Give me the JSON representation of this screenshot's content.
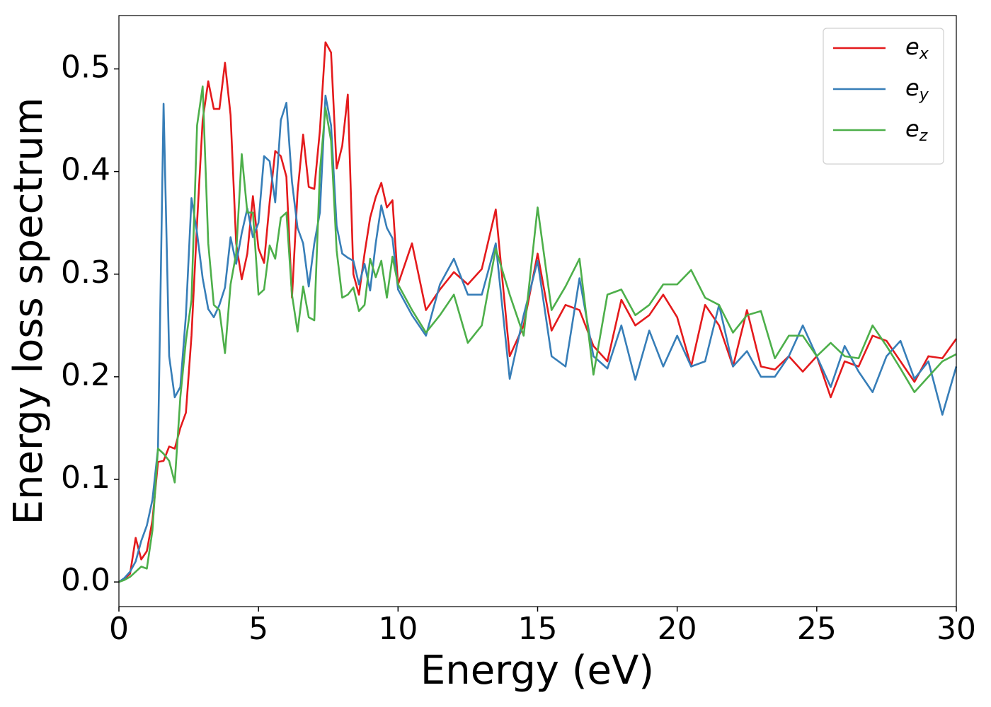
{
  "chart_data": {
    "type": "line",
    "xlabel": "Energy (eV)",
    "ylabel": "Energy loss spectrum",
    "x": [
      0,
      0.2,
      0.4,
      0.6,
      0.8,
      1,
      1.2,
      1.4,
      1.6,
      1.8,
      2,
      2.2,
      2.4,
      2.6,
      2.8,
      3,
      3.2,
      3.4,
      3.6,
      3.8,
      4,
      4.2,
      4.4,
      4.6,
      4.8,
      5,
      5.2,
      5.4,
      5.6,
      5.8,
      6,
      6.2,
      6.4,
      6.6,
      6.8,
      7,
      7.2,
      7.4,
      7.6,
      7.8,
      8,
      8.2,
      8.4,
      8.6,
      8.8,
      9,
      9.2,
      9.4,
      9.6,
      9.8,
      10,
      10.5,
      11,
      11.5,
      12,
      12.5,
      13,
      13.5,
      14,
      14.5,
      15,
      15.5,
      16,
      16.5,
      17,
      17.5,
      18,
      18.5,
      19,
      19.5,
      20,
      20.5,
      21,
      21.5,
      22,
      22.5,
      23,
      23.5,
      24,
      24.5,
      25,
      25.5,
      26,
      26.5,
      27,
      27.5,
      28,
      28.5,
      29,
      29.5,
      30
    ],
    "series": [
      {
        "name": "ex",
        "color": "#e41a1c",
        "values": [
          0,
          0.003,
          0.008,
          0.043,
          0.022,
          0.03,
          0.06,
          0.117,
          0.118,
          0.132,
          0.13,
          0.15,
          0.165,
          0.24,
          0.35,
          0.45,
          0.488,
          0.461,
          0.461,
          0.506,
          0.455,
          0.33,
          0.295,
          0.32,
          0.376,
          0.325,
          0.311,
          0.37,
          0.42,
          0.415,
          0.395,
          0.277,
          0.38,
          0.436,
          0.385,
          0.383,
          0.44,
          0.526,
          0.516,
          0.403,
          0.425,
          0.475,
          0.3,
          0.28,
          0.32,
          0.355,
          0.375,
          0.389,
          0.365,
          0.372,
          0.29,
          0.33,
          0.265,
          0.285,
          0.302,
          0.29,
          0.305,
          0.363,
          0.22,
          0.25,
          0.32,
          0.245,
          0.27,
          0.265,
          0.23,
          0.215,
          0.275,
          0.25,
          0.26,
          0.28,
          0.258,
          0.21,
          0.27,
          0.25,
          0.21,
          0.265,
          0.21,
          0.207,
          0.22,
          0.205,
          0.22,
          0.18,
          0.215,
          0.21,
          0.24,
          0.235,
          0.215,
          0.195,
          0.22,
          0.218,
          0.237
        ]
      },
      {
        "name": "ey",
        "color": "#377eb8",
        "values": [
          0,
          0.004,
          0.01,
          0.02,
          0.04,
          0.055,
          0.08,
          0.13,
          0.466,
          0.22,
          0.18,
          0.19,
          0.26,
          0.374,
          0.34,
          0.296,
          0.266,
          0.258,
          0.27,
          0.287,
          0.336,
          0.31,
          0.34,
          0.364,
          0.336,
          0.35,
          0.415,
          0.41,
          0.37,
          0.45,
          0.467,
          0.39,
          0.345,
          0.33,
          0.288,
          0.33,
          0.36,
          0.474,
          0.445,
          0.347,
          0.32,
          0.316,
          0.313,
          0.29,
          0.31,
          0.284,
          0.33,
          0.367,
          0.345,
          0.335,
          0.285,
          0.26,
          0.24,
          0.29,
          0.315,
          0.28,
          0.28,
          0.33,
          0.198,
          0.26,
          0.313,
          0.22,
          0.21,
          0.296,
          0.22,
          0.208,
          0.25,
          0.197,
          0.245,
          0.21,
          0.24,
          0.21,
          0.215,
          0.27,
          0.21,
          0.225,
          0.2,
          0.2,
          0.22,
          0.25,
          0.22,
          0.19,
          0.23,
          0.205,
          0.185,
          0.22,
          0.235,
          0.198,
          0.215,
          0.163,
          0.21
        ]
      },
      {
        "name": "ez",
        "color": "#4daf4a",
        "values": [
          0,
          0.002,
          0.005,
          0.01,
          0.015,
          0.013,
          0.05,
          0.13,
          0.125,
          0.118,
          0.097,
          0.18,
          0.235,
          0.275,
          0.445,
          0.483,
          0.33,
          0.27,
          0.265,
          0.223,
          0.29,
          0.32,
          0.417,
          0.36,
          0.36,
          0.28,
          0.285,
          0.328,
          0.315,
          0.355,
          0.36,
          0.28,
          0.244,
          0.288,
          0.258,
          0.255,
          0.4,
          0.462,
          0.43,
          0.323,
          0.277,
          0.28,
          0.287,
          0.264,
          0.27,
          0.315,
          0.297,
          0.313,
          0.277,
          0.317,
          0.29,
          0.265,
          0.243,
          0.26,
          0.28,
          0.233,
          0.25,
          0.325,
          0.28,
          0.24,
          0.365,
          0.265,
          0.288,
          0.315,
          0.202,
          0.28,
          0.285,
          0.26,
          0.27,
          0.29,
          0.29,
          0.304,
          0.277,
          0.27,
          0.243,
          0.26,
          0.264,
          0.218,
          0.24,
          0.24,
          0.22,
          0.233,
          0.22,
          0.218,
          0.25,
          0.23,
          0.208,
          0.185,
          0.2,
          0.215,
          0.222
        ]
      }
    ],
    "xlim": [
      0,
      30
    ],
    "xticks": [
      0,
      5,
      10,
      15,
      20,
      25,
      30
    ],
    "ylim": [
      -0.024,
      0.552
    ],
    "yticks": [
      {
        "value": 0,
        "label": "0.0"
      },
      0.1,
      0.2,
      0.3,
      0.4,
      0.5
    ],
    "legend": "upper right",
    "grid": false
  }
}
